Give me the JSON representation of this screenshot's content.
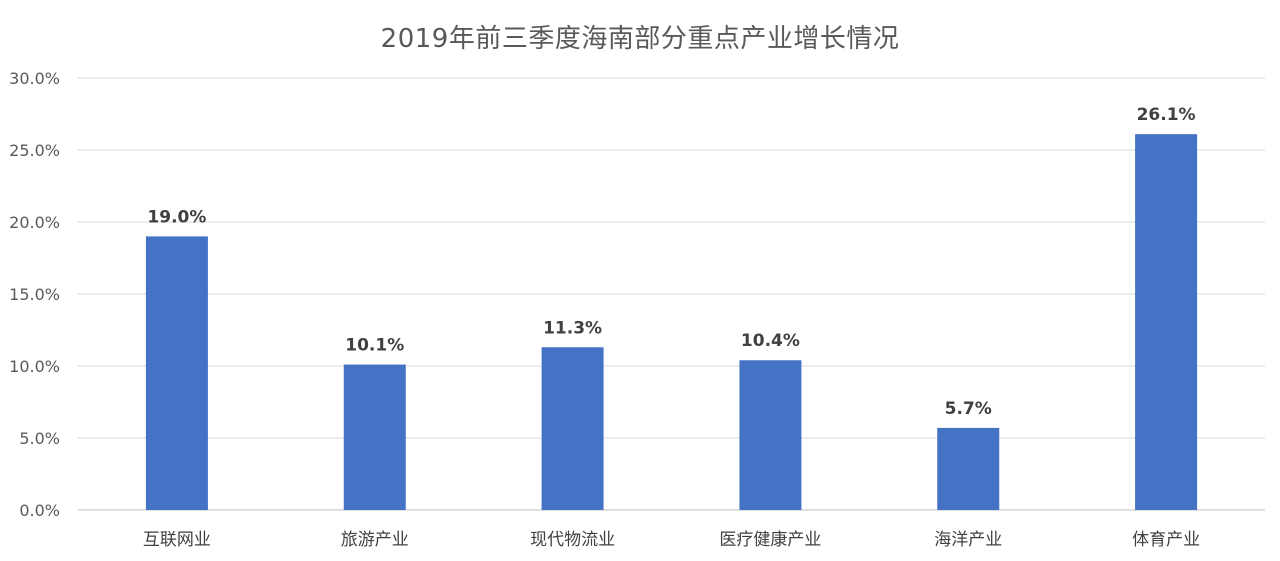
{
  "chart_data": {
    "type": "bar",
    "title": "2019年前三季度海南部分重点产业增长情况",
    "categories": [
      "互联网业",
      "旅游产业",
      "现代物流业",
      "医疗健康产业",
      "海洋产业",
      "体育产业"
    ],
    "values": [
      19.0,
      10.1,
      11.3,
      10.4,
      5.7,
      26.1
    ],
    "data_labels": [
      "19.0%",
      "10.1%",
      "11.3%",
      "10.4%",
      "5.7%",
      "26.1%"
    ],
    "y_ticks": [
      "0.0%",
      "5.0%",
      "10.0%",
      "15.0%",
      "20.0%",
      "25.0%",
      "30.0%"
    ],
    "ylim": [
      0,
      30
    ],
    "xlabel": "",
    "ylabel": "",
    "grid": true,
    "legend": "none",
    "bar_color": "#4472c4"
  }
}
